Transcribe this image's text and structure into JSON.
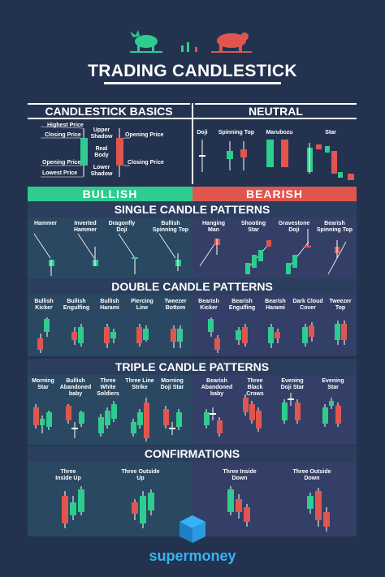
{
  "header": {
    "title": "TRADING CANDLESTICK"
  },
  "basics": {
    "title": "CANDLESTICK BASICS",
    "labels": [
      "Highest Price",
      "Closing Price",
      "Opening Price",
      "Lowest Price",
      "Upper Shadow",
      "Real Body",
      "Lower Shadow",
      "Opening Price",
      "Closing Price"
    ]
  },
  "neutral": {
    "title": "NEUTRAL",
    "items": [
      "Doji",
      "Spinning Top",
      "Marubozu",
      "Star"
    ]
  },
  "split": {
    "bullish": "BULLISH",
    "bearish": "BEARISH"
  },
  "single": {
    "title": "SINGLE CANDLE PATTERNS",
    "bullish": [
      "Hammer",
      "Inverted Hammer",
      "Dragonfly Doji",
      "Bullish Spinning Top"
    ],
    "bearish": [
      "Hanging Man",
      "Shooting Star",
      "Gravestone Doji",
      "Bearish Spinning Top"
    ]
  },
  "double": {
    "title": "DOUBLE CANDLE PATTERNS",
    "bullish": [
      "Bullish Kicker",
      "Bullish Engulfing",
      "Bullish Harami",
      "Piercing Line",
      "Tweezer Bottom"
    ],
    "bearish": [
      "Bearish Kicker",
      "Bearish Engulfing",
      "Bearish Harami",
      "Dark Cloud Cover",
      "Tweezer Top"
    ]
  },
  "triple": {
    "title": "TRIPLE CANDLE PATTERNS",
    "bullish": [
      "Morning Star",
      "Bullish Abandoned baby",
      "Three White Soldiers",
      "Three Line Strike",
      "Morning Doji Star"
    ],
    "bearish": [
      "Bearish Abandoned baby",
      "Three Black Crows",
      "Evening Doji Star",
      "Evening Star"
    ]
  },
  "confirm": {
    "title": "CONFIRMATIONS",
    "bullish": [
      "Three Inside Up",
      "Three Outside Up"
    ],
    "bearish": [
      "Three Inside Down",
      "Three Outside Down"
    ]
  },
  "brand": {
    "name": "supermoney"
  },
  "colors": {
    "bg": "#23334f",
    "green": "#2ecc8f",
    "red": "#e0564e",
    "brand": "#35b3f5"
  }
}
